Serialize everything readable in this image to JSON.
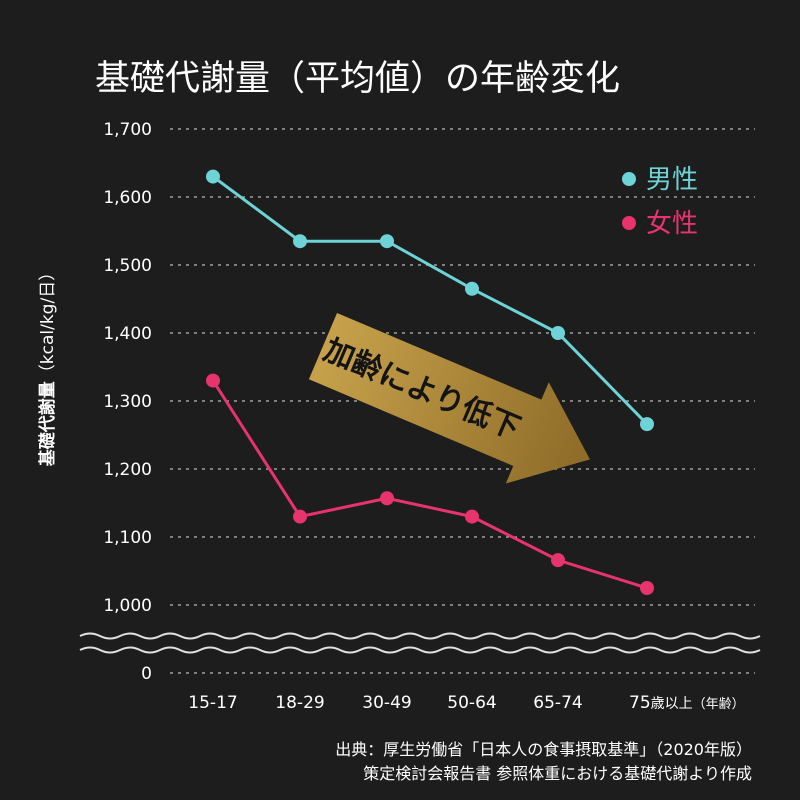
{
  "chart_data": {
    "type": "line",
    "title": "基礎代謝量（平均値）の年齢変化",
    "ylabel": "基礎代謝量（kcal/kg/日）",
    "ylabel_main": "基礎代謝量",
    "ylabel_unit": "（kcal/kg/日）",
    "categories": [
      "15-17",
      "18-29",
      "30-49",
      "50-64",
      "65-74",
      "75"
    ],
    "last_category_suffix": "歳以上",
    "x_unit": "（年齢）",
    "y_ticks": [
      "1,700",
      "1,600",
      "1,500",
      "1,400",
      "1,300",
      "1,200",
      "1,100",
      "1,000",
      "0"
    ],
    "ylim": [
      1000,
      1700
    ],
    "axis_break": true,
    "grid": true,
    "legend_position": "top-right",
    "series": [
      {
        "name": "男性",
        "color": "#6ed3d6",
        "values": [
          1630,
          1535,
          1535,
          1465,
          1400,
          1266
        ]
      },
      {
        "name": "女性",
        "color": "#e7336e",
        "values": [
          1330,
          1130,
          1157,
          1130,
          1066,
          1025
        ]
      }
    ],
    "annotation": "加齢により低下",
    "annotation_color": "#b8913a"
  },
  "source": {
    "line1": "出典：厚生労働省「日本人の食事摂取基準」（2020年版）",
    "line2": "策定検討会報告書 参照体重における基礎代謝より作成"
  }
}
